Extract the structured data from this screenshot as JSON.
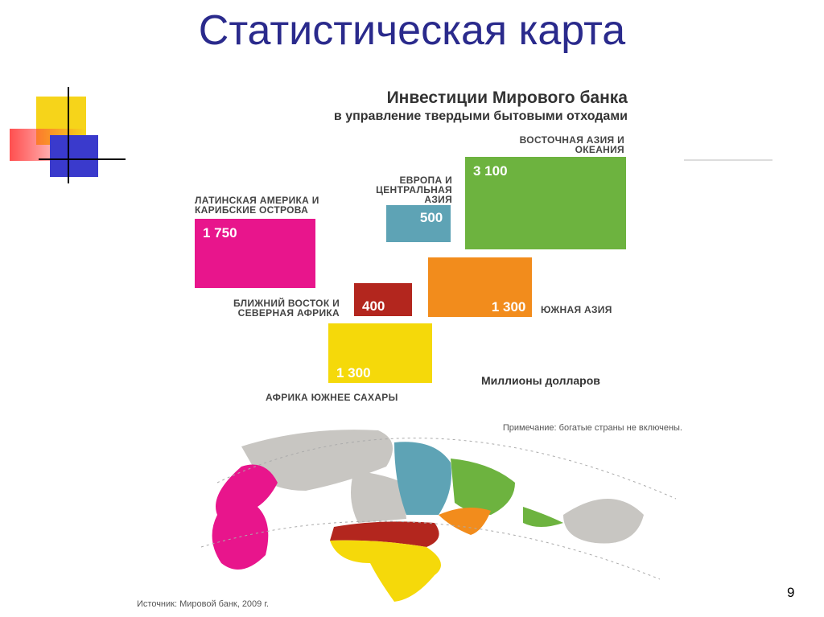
{
  "title": "Статистическая карта",
  "infographic": {
    "title_lines": [
      "Инвестиции Мирового банка",
      "в управление твердыми бытовыми отходами"
    ],
    "units": "Миллионы долларов",
    "regions": [
      {
        "name": "ВОСТОЧНАЯ АЗИЯ И ОКЕАНИЯ",
        "value": 3100,
        "label": "3 100",
        "color": "#6db33f"
      },
      {
        "name": "ЕВРОПА И ЦЕНТРАЛЬНАЯ АЗИЯ",
        "value": 500,
        "label": "500",
        "color": "#5ea3b5"
      },
      {
        "name": "ЛАТИНСКАЯ АМЕРИКА И КАРИБСКИЕ ОСТРОВА",
        "value": 1750,
        "label": "1 750",
        "color": "#e8158c"
      },
      {
        "name": "ЮЖНАЯ АЗИЯ",
        "value": 1300,
        "label": "1 300",
        "color": "#f28c1c"
      },
      {
        "name": "БЛИЖНИЙ ВОСТОК И СЕВЕРНАЯ АФРИКА",
        "value": 400,
        "label": "400",
        "color": "#b3261e"
      },
      {
        "name": "АФРИКА ЮЖНЕЕ САХАРЫ",
        "value": 1300,
        "label": "1 300",
        "color": "#f5d90a"
      }
    ],
    "note": "Примечание: богатые страны не включены.",
    "source": "Источник: Мировой банк, 2009 г."
  },
  "page_number": "9"
}
